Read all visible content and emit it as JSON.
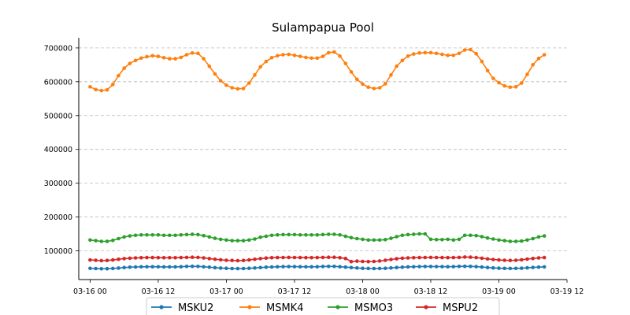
{
  "chart_data": {
    "type": "line",
    "title": "Sulampapua Pool",
    "xlabel": "",
    "ylabel": "",
    "x_range": [
      "2024-03-15T22:00",
      "2024-03-19T12:00"
    ],
    "x_ticks": [
      {
        "t": "2024-03-16T00:00",
        "label": "03-16 00"
      },
      {
        "t": "2024-03-16T12:00",
        "label": "03-16 12"
      },
      {
        "t": "2024-03-17T00:00",
        "label": "03-17 00"
      },
      {
        "t": "2024-03-17T12:00",
        "label": "03-17 12"
      },
      {
        "t": "2024-03-18T00:00",
        "label": "03-18 00"
      },
      {
        "t": "2024-03-18T12:00",
        "label": "03-18 12"
      },
      {
        "t": "2024-03-19T00:00",
        "label": "03-19 00"
      },
      {
        "t": "2024-03-19T12:00",
        "label": "03-19 12"
      }
    ],
    "ylim": [
      15000,
      730000
    ],
    "y_ticks": [
      100000,
      200000,
      300000,
      400000,
      500000,
      600000,
      700000
    ],
    "grid": "y-dashed",
    "legend_position": "bottom-center",
    "x_start": "2024-03-16T00:00",
    "x_step_hours": 1,
    "series": [
      {
        "name": "MSKU2",
        "color": "#1f77b4",
        "values": [
          48000,
          47500,
          47000,
          47200,
          47800,
          49000,
          50500,
          51500,
          52200,
          52800,
          53000,
          53000,
          52800,
          52600,
          52400,
          52600,
          53000,
          53800,
          54200,
          53800,
          52800,
          51500,
          50200,
          49000,
          48200,
          47600,
          47400,
          47600,
          48200,
          49200,
          50500,
          51500,
          52200,
          52800,
          53200,
          53400,
          53200,
          53000,
          52800,
          52800,
          53000,
          53600,
          54000,
          53800,
          53000,
          51800,
          50400,
          49200,
          48400,
          47800,
          47600,
          47800,
          48400,
          49400,
          50600,
          51600,
          52400,
          53000,
          53400,
          53600,
          53600,
          53400,
          53200,
          53000,
          53200,
          53800,
          54200,
          54000,
          53200,
          52000,
          50600,
          49400,
          48600,
          48000,
          47800,
          48000,
          48600,
          49600,
          50800,
          51800,
          52400
        ]
      },
      {
        "name": "MSMK4",
        "color": "#ff7f0e",
        "values": [
          585000,
          577000,
          574000,
          576000,
          592000,
          618000,
          640000,
          654000,
          663000,
          670000,
          674000,
          677000,
          675000,
          671000,
          668000,
          668000,
          672000,
          680000,
          685000,
          684000,
          668000,
          646000,
          623000,
          603000,
          590000,
          582000,
          579000,
          580000,
          596000,
          620000,
          644000,
          660000,
          671000,
          677000,
          680000,
          681000,
          678000,
          675000,
          672000,
          670000,
          670000,
          675000,
          686000,
          688000,
          676000,
          654000,
          629000,
          607000,
          593000,
          584000,
          580000,
          582000,
          594000,
          620000,
          646000,
          663000,
          676000,
          682000,
          685000,
          686000,
          686000,
          684000,
          681000,
          678000,
          678000,
          684000,
          694000,
          695000,
          683000,
          660000,
          633000,
          610000,
          597000,
          588000,
          584000,
          585000,
          596000,
          622000,
          650000,
          669000,
          680000
        ]
      },
      {
        "name": "MSMO3",
        "color": "#2ca02c",
        "values": [
          132000,
          130000,
          128000,
          128000,
          131000,
          136000,
          141000,
          144000,
          146000,
          147000,
          147000,
          147000,
          147000,
          146000,
          146000,
          146000,
          147000,
          148000,
          149000,
          148000,
          145000,
          141000,
          137000,
          134000,
          132000,
          130000,
          130000,
          130000,
          132000,
          135000,
          140000,
          143000,
          146000,
          147000,
          148000,
          148000,
          148000,
          147000,
          147000,
          147000,
          147000,
          148000,
          149000,
          149000,
          147000,
          143000,
          139000,
          136000,
          134000,
          132000,
          132000,
          132000,
          133000,
          137000,
          142000,
          146000,
          148000,
          149000,
          150000,
          150000,
          134000,
          133000,
          133000,
          134000,
          132000,
          134000,
          146000,
          146000,
          145000,
          142000,
          138000,
          135000,
          132000,
          130000,
          128000,
          128000,
          129000,
          132000,
          136000,
          141000,
          144000
        ]
      },
      {
        "name": "MSPU2",
        "color": "#d62728",
        "values": [
          73000,
          72000,
          71000,
          71500,
          73000,
          75000,
          77000,
          78000,
          79000,
          79500,
          80000,
          80000,
          79800,
          79600,
          79400,
          79600,
          80000,
          80500,
          81000,
          80500,
          79000,
          77000,
          75000,
          73500,
          72000,
          71500,
          71000,
          71500,
          73000,
          75000,
          77000,
          78500,
          79500,
          80000,
          80200,
          80400,
          80200,
          80000,
          79800,
          79800,
          80000,
          80500,
          81000,
          80800,
          79500,
          77500,
          68000,
          69500,
          68500,
          68000,
          68500,
          70000,
          72000,
          74500,
          76500,
          78000,
          79000,
          79500,
          80000,
          80200,
          80400,
          80200,
          80000,
          79800,
          80000,
          80500,
          81500,
          81200,
          80000,
          78000,
          76000,
          74500,
          73000,
          72000,
          71500,
          72000,
          73500,
          75500,
          77500,
          79000,
          80000
        ]
      }
    ]
  }
}
